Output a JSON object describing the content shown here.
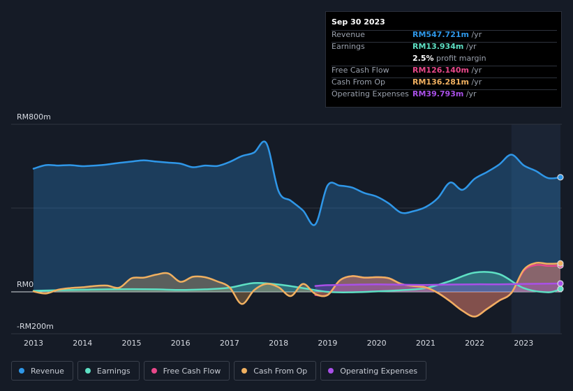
{
  "tooltip": {
    "date": "Sep 30 2023",
    "rows": [
      {
        "label": "Revenue",
        "value": "RM547.721m",
        "unit": " /yr",
        "color": "#2f97e8"
      },
      {
        "label": "Earnings",
        "value": "RM13.934m",
        "unit": " /yr",
        "color": "#5ee0c4"
      },
      {
        "label": "",
        "value": "2.5%",
        "unit": " profit margin",
        "color": "#ffffff"
      },
      {
        "label": "Free Cash Flow",
        "value": "RM126.140m",
        "unit": " /yr",
        "color": "#e8488a"
      },
      {
        "label": "Cash From Op",
        "value": "RM136.281m",
        "unit": " /yr",
        "color": "#f0b060"
      },
      {
        "label": "Operating Expenses",
        "value": "RM39.793m",
        "unit": " /yr",
        "color": "#a950e8"
      }
    ]
  },
  "legend": [
    {
      "label": "Revenue",
      "color": "#2f97e8"
    },
    {
      "label": "Earnings",
      "color": "#5ee0c4"
    },
    {
      "label": "Free Cash Flow",
      "color": "#e8488a"
    },
    {
      "label": "Cash From Op",
      "color": "#f0b060"
    },
    {
      "label": "Operating Expenses",
      "color": "#a950e8"
    }
  ],
  "chart_data": {
    "type": "area",
    "ylim": [
      -200,
      800
    ],
    "xlim": [
      2013,
      2023.75
    ],
    "y_tick_labels": [
      {
        "value": 800,
        "label": "RM800m"
      },
      {
        "value": 0,
        "label": "RM0"
      },
      {
        "value": -200,
        "label": "-RM200m"
      }
    ],
    "x_ticks": [
      2013,
      2014,
      2015,
      2016,
      2017,
      2018,
      2019,
      2020,
      2021,
      2022,
      2023
    ],
    "x_tick_labels": [
      "2013",
      "2014",
      "2015",
      "2016",
      "2017",
      "2018",
      "2019",
      "2020",
      "2021",
      "2022",
      "2023"
    ],
    "highlight_from": 2022.75,
    "series": [
      {
        "name": "Revenue",
        "color": "#2f97e8",
        "x": [
          2013,
          2013.25,
          2013.5,
          2013.75,
          2014,
          2014.25,
          2014.5,
          2014.75,
          2015,
          2015.25,
          2015.5,
          2015.75,
          2016,
          2016.25,
          2016.5,
          2016.75,
          2017,
          2017.25,
          2017.5,
          2017.75,
          2018,
          2018.25,
          2018.5,
          2018.75,
          2019,
          2019.25,
          2019.5,
          2019.75,
          2020,
          2020.25,
          2020.5,
          2020.75,
          2021,
          2021.25,
          2021.5,
          2021.75,
          2022,
          2022.25,
          2022.5,
          2022.75,
          2023,
          2023.25,
          2023.5,
          2023.75
        ],
        "values": [
          588,
          605,
          603,
          605,
          600,
          603,
          608,
          616,
          622,
          628,
          622,
          617,
          612,
          595,
          603,
          601,
          620,
          648,
          665,
          710,
          480,
          435,
          388,
          322,
          508,
          507,
          498,
          472,
          455,
          422,
          378,
          385,
          405,
          448,
          522,
          487,
          540,
          572,
          608,
          655,
          604,
          577,
          543,
          547
        ]
      },
      {
        "name": "Earnings",
        "color": "#5ee0c4",
        "x": [
          2013,
          2013.5,
          2014,
          2014.5,
          2015,
          2015.5,
          2016,
          2016.5,
          2017,
          2017.5,
          2018,
          2018.5,
          2019,
          2019.5,
          2020,
          2020.5,
          2021,
          2021.5,
          2022,
          2022.5,
          2023,
          2023.5,
          2023.75
        ],
        "values": [
          5,
          8,
          10,
          12,
          13,
          12,
          9,
          12,
          20,
          42,
          35,
          18,
          0,
          -2,
          2,
          8,
          18,
          52,
          92,
          85,
          18,
          -2,
          14
        ]
      },
      {
        "name": "Free Cash Flow",
        "color": "#e8488a",
        "x": [
          2018.75,
          2019,
          2019.25,
          2019.5,
          2019.75,
          2020,
          2020.25,
          2020.5,
          2020.75,
          2021,
          2021.25,
          2021.5,
          2021.75,
          2022,
          2022.25,
          2022.5,
          2022.75,
          2023,
          2023.25,
          2023.5,
          2023.75
        ],
        "values": [
          -15,
          -15,
          55,
          75,
          68,
          70,
          65,
          38,
          28,
          20,
          -5,
          -45,
          -90,
          -118,
          -82,
          -42,
          -5,
          100,
          128,
          124,
          126
        ]
      },
      {
        "name": "Cash From Op",
        "color": "#f0b060",
        "x": [
          2013,
          2013.25,
          2013.5,
          2013.75,
          2014,
          2014.25,
          2014.5,
          2014.75,
          2015,
          2015.25,
          2015.5,
          2015.75,
          2016,
          2016.25,
          2016.5,
          2016.75,
          2017,
          2017.25,
          2017.5,
          2017.75,
          2018,
          2018.25,
          2018.5,
          2018.75,
          2019,
          2019.25,
          2019.5,
          2019.75,
          2020,
          2020.25,
          2020.5,
          2020.75,
          2021,
          2021.25,
          2021.5,
          2021.75,
          2022,
          2022.25,
          2022.5,
          2022.75,
          2023,
          2023.25,
          2023.5,
          2023.75
        ],
        "values": [
          2,
          -8,
          10,
          18,
          22,
          28,
          30,
          20,
          65,
          68,
          82,
          88,
          48,
          72,
          70,
          50,
          22,
          -58,
          8,
          38,
          22,
          -20,
          38,
          -10,
          -15,
          55,
          75,
          68,
          70,
          65,
          38,
          28,
          22,
          -5,
          -45,
          -90,
          -118,
          -82,
          -42,
          -5,
          105,
          138,
          134,
          136
        ]
      },
      {
        "name": "Operating Expenses",
        "color": "#a950e8",
        "x": [
          2018.75,
          2019,
          2019.5,
          2020,
          2020.5,
          2021,
          2021.5,
          2022,
          2022.5,
          2023,
          2023.5,
          2023.75
        ],
        "values": [
          28,
          32,
          34,
          36,
          34,
          33,
          35,
          36,
          36,
          38,
          39,
          40
        ]
      }
    ]
  }
}
